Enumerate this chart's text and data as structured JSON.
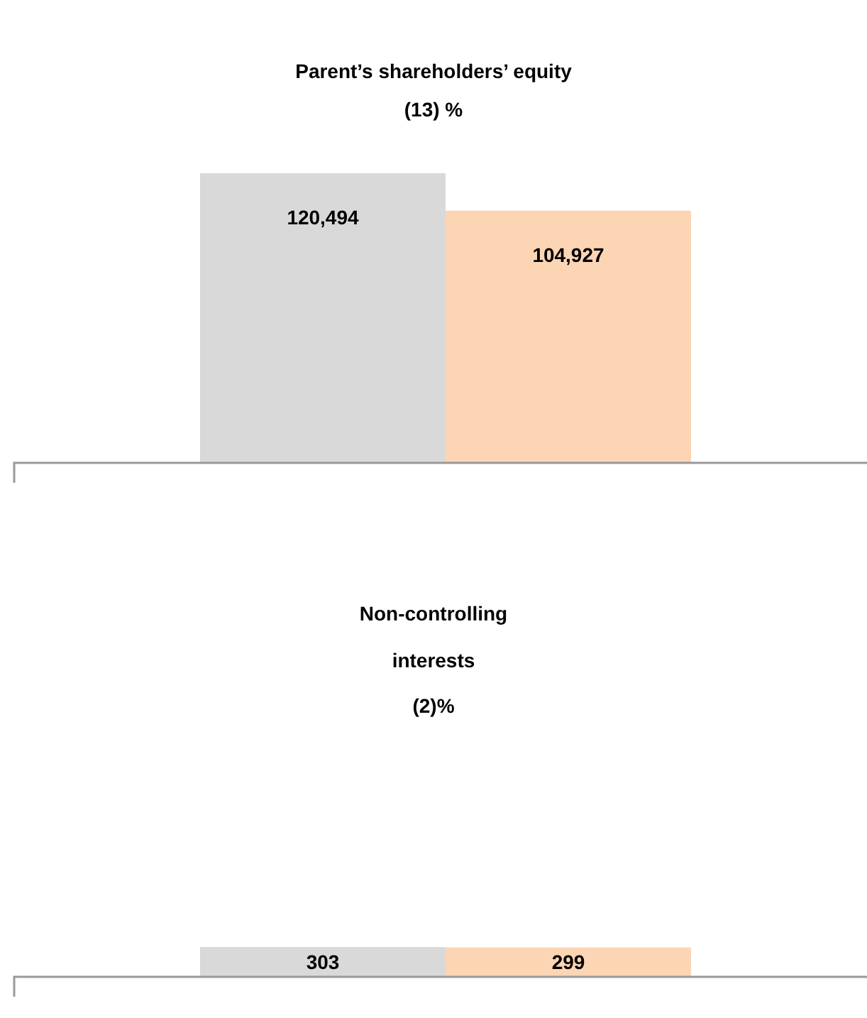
{
  "chart_data": [
    {
      "type": "bar",
      "title": "Parent’s shareholders’ equity",
      "subtitle": "(13) %",
      "categories": [
        null,
        null
      ],
      "values": [
        120494,
        104927
      ],
      "value_labels": [
        "120,494",
        "104,927"
      ],
      "colors": [
        "#d9d9d9",
        "#fcd5b4"
      ]
    },
    {
      "type": "bar",
      "title": "Non-controlling interests",
      "subtitle": "(2)%",
      "categories": [
        null,
        null
      ],
      "values": [
        303,
        299
      ],
      "value_labels": [
        "303",
        "299"
      ],
      "colors": [
        "#d9d9d9",
        "#fcd5b4"
      ]
    }
  ]
}
